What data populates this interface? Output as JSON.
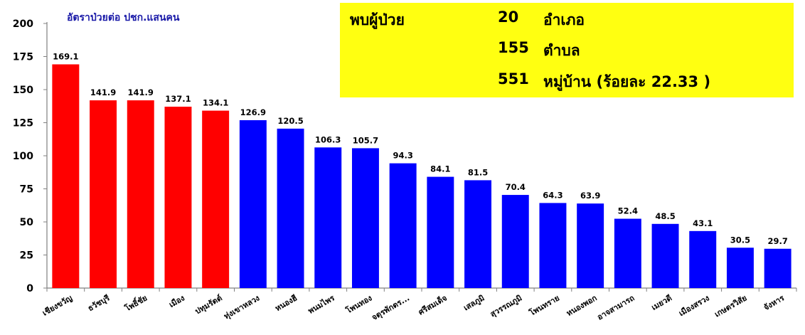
{
  "chart_data": {
    "type": "bar",
    "title": "อัตราป่วยต่อ ปชก.แสนคน",
    "xlabel": "",
    "ylabel": "",
    "ylim": [
      0,
      200
    ],
    "yticks": [
      0,
      25,
      50,
      75,
      100,
      125,
      150,
      175,
      200
    ],
    "grid": false,
    "categories": [
      "เชียงขวัญ",
      "ธวัชบุรี",
      "โพธิ์ชัย",
      "เมือง",
      "ปทุมรัตต์",
      "ทุ่งเขาหลวง",
      "หนองฮี",
      "พนมไพร",
      "โพนทอง",
      "จตุรพักตร...",
      "ศรีสมเด็จ",
      "เสลภูมิ",
      "สุวรรณภูมิ",
      "โพนทราย",
      "หนองพอก",
      "อาจสามารถ",
      "เมยวดี",
      "เมืองสรวง",
      "เกษตรวิสัย",
      "จังหาร"
    ],
    "values": [
      169.1,
      141.9,
      141.9,
      137.1,
      134.1,
      126.9,
      120.5,
      106.3,
      105.7,
      94.3,
      84.1,
      81.5,
      70.4,
      64.3,
      63.9,
      52.4,
      48.5,
      43.1,
      30.5,
      29.7
    ],
    "value_labels": [
      "169.1",
      "141.9",
      "141.9",
      "137.1",
      "134.1",
      "126.9",
      "120.5",
      "106.3",
      "105.7",
      "94.3",
      "84.1",
      "81.5",
      "70.4",
      "64.3",
      "63.9",
      "52.4",
      "48.5",
      "43.1",
      "30.5",
      "29.7"
    ],
    "colors": [
      "#ff0000",
      "#ff0000",
      "#ff0000",
      "#ff0000",
      "#ff0000",
      "#0000ff",
      "#0000ff",
      "#0000ff",
      "#0000ff",
      "#0000ff",
      "#0000ff",
      "#0000ff",
      "#0000ff",
      "#0000ff",
      "#0000ff",
      "#0000ff",
      "#0000ff",
      "#0000ff",
      "#0000ff",
      "#0000ff"
    ],
    "title_color": "#1a1aa8"
  },
  "info_box": {
    "background": "#ffff11",
    "heading": "พบผู้ป่วย",
    "district_count": "20",
    "district_unit": "อำเภอ",
    "subdistrict_count": "155",
    "subdistrict_unit": "ตำบล",
    "village_count": "551",
    "village_unit": "หมู่บ้าน (ร้อยละ  22.33 )"
  }
}
